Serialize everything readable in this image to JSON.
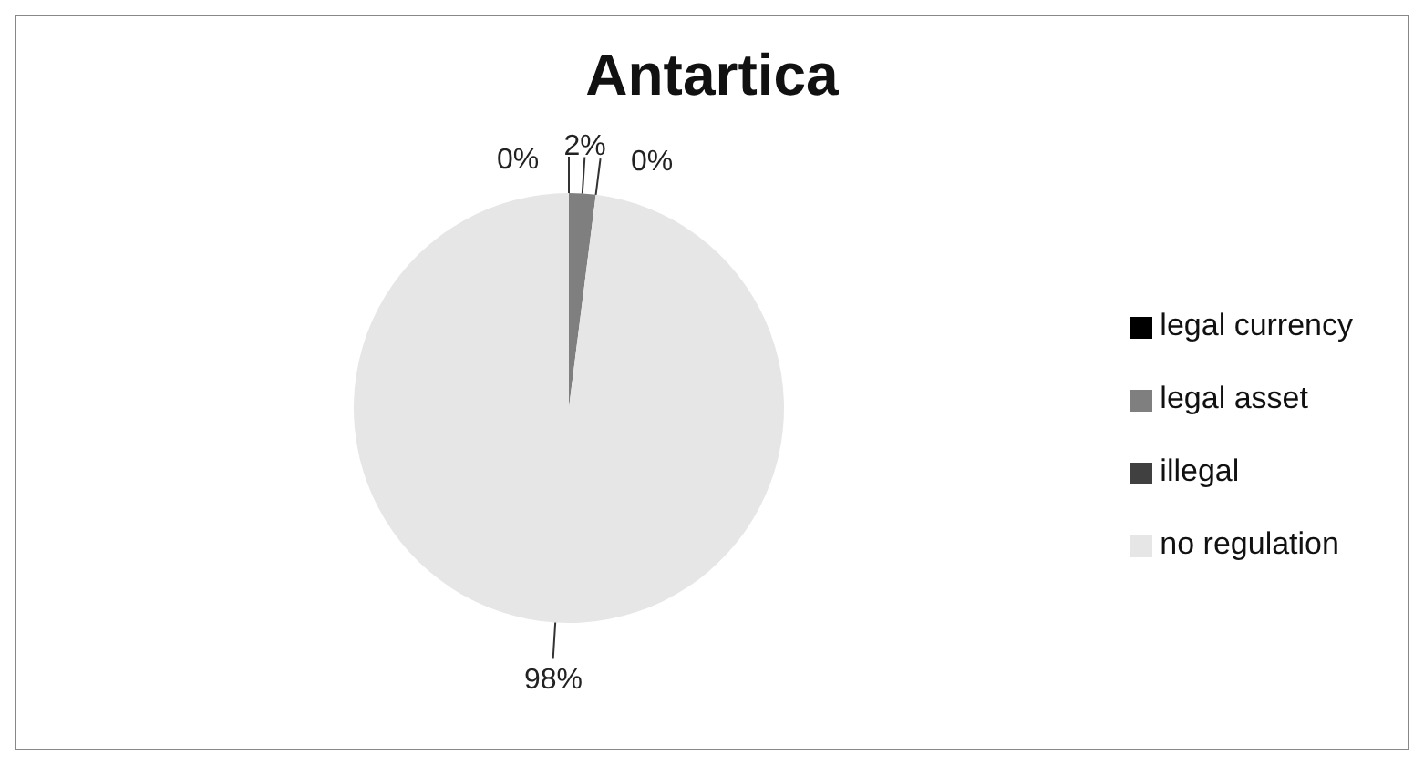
{
  "chart_data": {
    "type": "pie",
    "title": "Antartica",
    "categories": [
      "legal currency",
      "legal asset",
      "illegal",
      "no regulation"
    ],
    "values": [
      0,
      2,
      0,
      98
    ],
    "value_labels": [
      "0%",
      "2%",
      "0%",
      "98%"
    ],
    "colors": [
      "#000000",
      "#7f7f7f",
      "#404040",
      "#e6e6e6"
    ],
    "legend": "right"
  }
}
